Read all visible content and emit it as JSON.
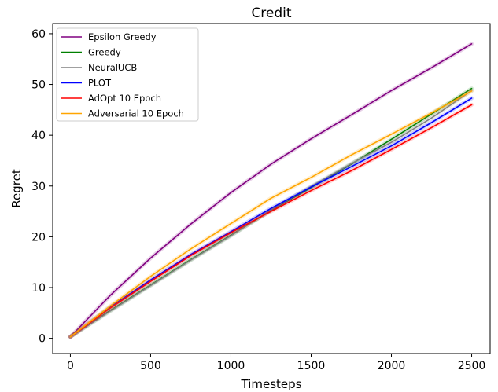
{
  "chart_data": {
    "type": "line",
    "title": "Credit",
    "xlabel": "Timesteps",
    "ylabel": "Regret",
    "xlim": [
      -110,
      2615
    ],
    "ylim": [
      -3,
      62
    ],
    "xticks": [
      0,
      500,
      1000,
      1500,
      2000,
      2500
    ],
    "yticks": [
      0,
      10,
      20,
      30,
      40,
      50,
      60
    ],
    "grid": false,
    "legend_position": "top-left",
    "series": [
      {
        "name": "Epsilon Greedy",
        "color": "#800080",
        "x": [
          0,
          250,
          500,
          750,
          1000,
          1250,
          1500,
          1750,
          2000,
          2250,
          2500
        ],
        "y": [
          0.3,
          8.5,
          15.8,
          22.5,
          28.7,
          34.3,
          39.3,
          44.0,
          48.8,
          53.3,
          58.0
        ]
      },
      {
        "name": "Greedy",
        "color": "#008000",
        "x": [
          0,
          250,
          500,
          750,
          1000,
          1250,
          1500,
          1750,
          2000,
          2250,
          2500
        ],
        "y": [
          0.3,
          5.5,
          10.5,
          15.5,
          20.3,
          25.2,
          29.7,
          34.3,
          39.2,
          44.2,
          49.2
        ]
      },
      {
        "name": "NeuralUCB",
        "color": "#808080",
        "x": [
          0,
          250,
          500,
          750,
          1000,
          1250,
          1500,
          1750,
          2000,
          2250,
          2500
        ],
        "y": [
          0.3,
          5.4,
          10.4,
          15.4,
          20.2,
          25.3,
          29.9,
          34.4,
          38.6,
          43.4,
          48.8
        ]
      },
      {
        "name": "PLOT",
        "color": "#0000ff",
        "x": [
          0,
          250,
          500,
          750,
          1000,
          1250,
          1500,
          1750,
          2000,
          2250,
          2500
        ],
        "y": [
          0.3,
          6.2,
          11.5,
          16.5,
          21.0,
          25.6,
          29.8,
          33.8,
          37.9,
          42.5,
          47.3
        ]
      },
      {
        "name": "AdOpt 10 Epoch",
        "color": "#ff0000",
        "x": [
          0,
          250,
          500,
          750,
          1000,
          1250,
          1500,
          1750,
          2000,
          2250,
          2500
        ],
        "y": [
          0.3,
          6.0,
          11.2,
          16.3,
          20.8,
          25.0,
          29.1,
          33.0,
          37.2,
          41.5,
          46.0
        ]
      },
      {
        "name": "Adversarial 10 Epoch",
        "color": "#ffa500",
        "x": [
          0,
          250,
          500,
          750,
          1000,
          1250,
          1500,
          1750,
          2000,
          2250,
          2500
        ],
        "y": [
          0.3,
          6.4,
          12.2,
          17.6,
          22.6,
          27.6,
          31.7,
          36.1,
          40.2,
          44.4,
          48.7
        ]
      }
    ]
  }
}
